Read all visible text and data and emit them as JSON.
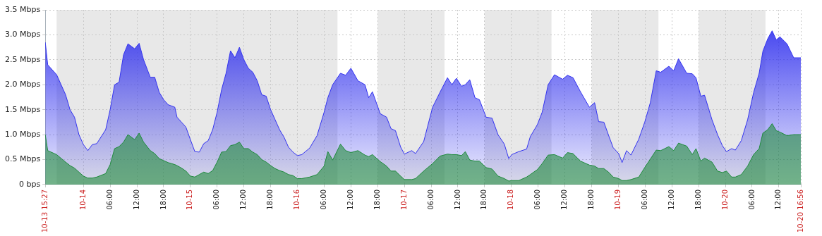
{
  "chart_data": {
    "type": "area",
    "x": [
      "--10-13T15:27",
      "--10-13T16:00",
      "--10-13T18:00",
      "--10-13T20:00",
      "--10-13T21:00",
      "--10-13T22:00",
      "--10-13T23:00",
      "--10-14T00:00",
      "--10-14T01:00",
      "--10-14T02:00",
      "--10-14T03:00",
      "--10-14T05:00",
      "--10-14T06:00",
      "--10-14T07:00",
      "--10-14T08:00",
      "--10-14T09:00",
      "--10-14T10:00",
      "--10-14T11:30",
      "--10-14T12:30",
      "--10-14T13:30",
      "--10-14T15:00",
      "--10-14T16:00",
      "--10-14T17:00",
      "--10-14T18:00",
      "--10-14T19:00",
      "--10-14T20:30",
      "--10-14T21:00",
      "--10-14T22:00",
      "--10-14T23:00",
      "--10-15T00:00",
      "--10-15T01:00",
      "--10-15T02:00",
      "--10-15T03:00",
      "--10-15T04:00",
      "--10-15T05:00",
      "--10-15T06:00",
      "--10-15T07:00",
      "--10-15T08:00",
      "--10-15T09:00",
      "--10-15T10:00",
      "--10-15T11:00",
      "--10-15T12:00",
      "--10-15T13:00",
      "--10-15T14:00",
      "--10-15T15:00",
      "--10-15T16:00",
      "--10-15T17:00",
      "--10-15T18:00",
      "--10-15T19:00",
      "--10-15T20:00",
      "--10-15T21:00",
      "--10-15T22:00",
      "--10-15T23:00",
      "--10-16T00:00",
      "--10-16T01:00",
      "--10-16T02:45",
      "--10-16T04:25",
      "--10-16T06:00",
      "--10-16T06:50",
      "--10-16T07:55",
      "--10-16T09:40",
      "--10-16T10:50",
      "--10-16T12:00",
      "--10-16T13:35",
      "--10-16T15:10",
      "--10-16T16:00",
      "--10-16T16:50",
      "--10-16T18:35",
      "--10-16T20:00",
      "--10-16T21:00",
      "--10-16T22:00",
      "--10-16T23:10",
      "--10-17T00:00",
      "--10-17T01:40",
      "--10-17T02:30",
      "--10-17T04:20",
      "--10-17T06:20",
      "--10-17T08:00",
      "--10-17T09:40",
      "--10-17T10:40",
      "--10-17T11:40",
      "--10-17T12:50",
      "--10-17T13:40",
      "--10-17T14:40",
      "--10-17T15:50",
      "--10-17T16:50",
      "--10-17T18:20",
      "--10-17T19:40",
      "--10-17T21:00",
      "--10-17T22:25",
      "--10-17T23:25",
      "--10-18T00:05",
      "--10-18T01:40",
      "--10-18T03:25",
      "--10-18T04:15",
      "--10-18T05:50",
      "--10-18T06:55",
      "--10-18T08:15",
      "--10-18T09:40",
      "--10-18T11:30",
      "--10-18T12:35",
      "--10-18T13:50",
      "--10-18T15:30",
      "--10-18T17:30",
      "--10-18T18:40",
      "--10-18T19:35",
      "--10-18T20:45",
      "--10-18T21:55",
      "--10-18T22:50",
      "--10-19T00:05",
      "--10-19T00:50",
      "--10-19T01:50",
      "--10-19T02:50",
      "--10-19T04:35",
      "--10-19T05:55",
      "--10-19T07:10",
      "--10-19T08:30",
      "--10-19T09:30",
      "--10-19T11:20",
      "--10-19T12:25",
      "--10-19T13:30",
      "--10-19T15:20",
      "--10-19T16:35",
      "--10-19T17:25",
      "--10-19T18:30",
      "--10-19T19:20",
      "--10-19T21:00",
      "--10-19T22:15",
      "--10-19T23:20",
      "--10-20T00:15",
      "--10-20T01:25",
      "--10-20T02:15",
      "--10-20T03:35",
      "--10-20T05:00",
      "--10-20T06:20",
      "--10-20T07:35",
      "--10-20T08:25",
      "--10-20T09:30",
      "--10-20T10:30",
      "--10-20T11:25",
      "--10-20T12:15",
      "--10-20T13:50",
      "--10-20T15:20",
      "--10-20T16:56"
    ],
    "series": [
      {
        "color": "#3333ee",
        "values": [
          2.85,
          2.4,
          2.2,
          1.8,
          1.5,
          1.35,
          1.0,
          0.8,
          0.68,
          0.8,
          0.82,
          1.1,
          1.5,
          2.0,
          2.05,
          2.6,
          2.82,
          2.72,
          2.83,
          2.5,
          2.15,
          2.15,
          1.85,
          1.7,
          1.6,
          1.55,
          1.35,
          1.25,
          1.15,
          0.9,
          0.66,
          0.65,
          0.82,
          0.88,
          1.1,
          1.45,
          1.9,
          2.23,
          2.68,
          2.54,
          2.75,
          2.5,
          2.33,
          2.25,
          2.08,
          1.8,
          1.77,
          1.5,
          1.3,
          1.1,
          0.95,
          0.75,
          0.65,
          0.58,
          0.6,
          0.73,
          0.98,
          1.45,
          1.74,
          2.0,
          2.23,
          2.19,
          2.33,
          2.08,
          2.0,
          1.74,
          1.86,
          1.42,
          1.35,
          1.12,
          1.08,
          0.75,
          0.61,
          0.68,
          0.62,
          0.86,
          1.55,
          1.85,
          2.14,
          2.0,
          2.13,
          1.97,
          2.0,
          2.1,
          1.74,
          1.7,
          1.35,
          1.33,
          1.0,
          0.81,
          0.52,
          0.6,
          0.66,
          0.71,
          0.96,
          1.2,
          1.45,
          2.0,
          2.2,
          2.11,
          2.19,
          2.14,
          1.86,
          1.55,
          1.64,
          1.26,
          1.25,
          0.96,
          0.74,
          0.62,
          0.44,
          0.68,
          0.59,
          0.91,
          1.25,
          1.64,
          2.28,
          2.25,
          2.37,
          2.28,
          2.52,
          2.23,
          2.22,
          2.14,
          1.77,
          1.79,
          1.3,
          1.0,
          0.78,
          0.66,
          0.72,
          0.69,
          0.88,
          1.3,
          1.84,
          2.23,
          2.67,
          2.92,
          3.08,
          2.9,
          2.96,
          2.82,
          2.54,
          2.54
        ]
      },
      {
        "color": "#1f8a3c",
        "values": [
          1.0,
          0.68,
          0.6,
          0.45,
          0.38,
          0.33,
          0.25,
          0.17,
          0.13,
          0.13,
          0.15,
          0.22,
          0.4,
          0.72,
          0.76,
          0.85,
          1.0,
          0.9,
          1.03,
          0.85,
          0.68,
          0.62,
          0.52,
          0.48,
          0.44,
          0.4,
          0.38,
          0.33,
          0.27,
          0.17,
          0.15,
          0.2,
          0.25,
          0.22,
          0.28,
          0.45,
          0.65,
          0.66,
          0.78,
          0.8,
          0.85,
          0.72,
          0.72,
          0.65,
          0.6,
          0.5,
          0.45,
          0.38,
          0.32,
          0.28,
          0.25,
          0.2,
          0.18,
          0.12,
          0.12,
          0.15,
          0.2,
          0.37,
          0.66,
          0.49,
          0.81,
          0.68,
          0.64,
          0.68,
          0.59,
          0.56,
          0.6,
          0.46,
          0.37,
          0.27,
          0.27,
          0.17,
          0.1,
          0.1,
          0.12,
          0.27,
          0.42,
          0.57,
          0.61,
          0.6,
          0.6,
          0.58,
          0.66,
          0.49,
          0.47,
          0.47,
          0.34,
          0.31,
          0.17,
          0.12,
          0.07,
          0.08,
          0.08,
          0.15,
          0.2,
          0.3,
          0.42,
          0.59,
          0.6,
          0.53,
          0.64,
          0.62,
          0.47,
          0.39,
          0.37,
          0.32,
          0.32,
          0.24,
          0.15,
          0.12,
          0.08,
          0.08,
          0.1,
          0.15,
          0.34,
          0.51,
          0.69,
          0.68,
          0.76,
          0.68,
          0.83,
          0.77,
          0.6,
          0.72,
          0.47,
          0.53,
          0.45,
          0.27,
          0.24,
          0.27,
          0.15,
          0.15,
          0.2,
          0.37,
          0.6,
          0.72,
          1.03,
          1.1,
          1.22,
          1.08,
          1.05,
          0.98,
          1.0,
          1.0
        ]
      }
    ],
    "xlim": [
      "--10-13T15:27",
      "--10-20T16:56"
    ],
    "xticks": [
      {
        "value": "--10-13T15:27",
        "label": "10-13 15:27"
      },
      {
        "value": "--10-14T00:00",
        "label": "10-14"
      },
      {
        "value": "--10-14T06:00",
        "label": "06:00"
      },
      {
        "value": "--10-14T12:00",
        "label": "12:00"
      },
      {
        "value": "--10-14T18:00",
        "label": "18:00"
      },
      {
        "value": "--10-15T00:00",
        "label": "10-15"
      },
      {
        "value": "--10-15T06:00",
        "label": "06:00"
      },
      {
        "value": "--10-15T12:00",
        "label": "12:00"
      },
      {
        "value": "--10-15T18:00",
        "label": "18:00"
      },
      {
        "value": "--10-16T00:00",
        "label": "10-16"
      },
      {
        "value": "--10-16T06:00",
        "label": "06:00"
      },
      {
        "value": "--10-16T12:00",
        "label": "12:00"
      },
      {
        "value": "--10-16T18:00",
        "label": "18:00"
      },
      {
        "value": "--10-17T00:00",
        "label": "10-17"
      },
      {
        "value": "--10-17T06:00",
        "label": "06:00"
      },
      {
        "value": "--10-17T12:00",
        "label": "12:00"
      },
      {
        "value": "--10-17T18:00",
        "label": "18:00"
      },
      {
        "value": "--10-18T00:00",
        "label": "10-18"
      },
      {
        "value": "--10-18T06:00",
        "label": "06:00"
      },
      {
        "value": "--10-18T12:00",
        "label": "12:00"
      },
      {
        "value": "--10-18T18:00",
        "label": "18:00"
      },
      {
        "value": "--10-19T00:00",
        "label": "10-19"
      },
      {
        "value": "--10-19T06:00",
        "label": "06:00"
      },
      {
        "value": "--10-19T12:00",
        "label": "12:00"
      },
      {
        "value": "--10-19T18:00",
        "label": "18:00"
      },
      {
        "value": "--10-20T00:00",
        "label": "10-20"
      },
      {
        "value": "--10-20T06:00",
        "label": "06:00"
      },
      {
        "value": "--10-20T12:00",
        "label": "12:00"
      },
      {
        "value": "--10-20T16:56",
        "label": "10-20 16:56"
      }
    ],
    "ylim": [
      0,
      3.5
    ],
    "yticks": [
      {
        "value": 0,
        "label": "0 bps"
      },
      {
        "value": 0.5,
        "label": "0.5 Mbps"
      },
      {
        "value": 1,
        "label": "1.0 Mbps"
      },
      {
        "value": 1.5,
        "label": "1.5 Mbps"
      },
      {
        "value": 2,
        "label": "2.0 Mbps"
      },
      {
        "value": 2.5,
        "label": "2.5 Mbps"
      },
      {
        "value": 3,
        "label": "3.0 Mbps"
      },
      {
        "value": 3.5,
        "label": "3.5 Mbps"
      }
    ],
    "bands": [
      {
        "axis": "x",
        "from": "--10-13T18:00",
        "to": "--10-16T09:00",
        "color": "#e8e8e8"
      },
      {
        "axis": "x",
        "from": "--10-16T18:00",
        "to": "--10-17T09:00",
        "color": "#e8e8e8"
      },
      {
        "axis": "x",
        "from": "--10-17T18:00",
        "to": "--10-18T09:00",
        "color": "#e8e8e8"
      },
      {
        "axis": "x",
        "from": "--10-18T18:00",
        "to": "--10-19T09:00",
        "color": "#e8e8e8"
      },
      {
        "axis": "x",
        "from": "--10-19T18:00",
        "to": "--10-20T09:00",
        "color": "#e8e8e8"
      }
    ],
    "grid": true,
    "legend": false
  }
}
